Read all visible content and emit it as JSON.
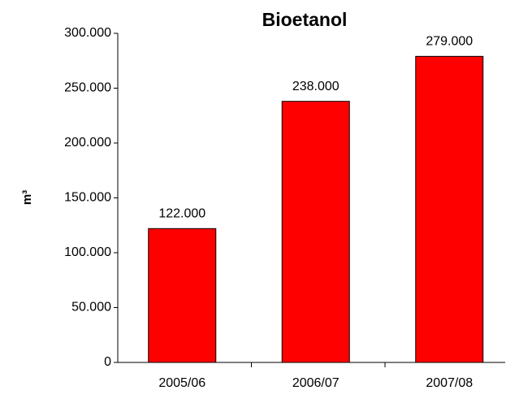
{
  "chart_data": {
    "type": "bar",
    "title": "Bioetanol",
    "y_label": "m³",
    "categories": [
      "2005/06",
      "2006/07",
      "2007/08"
    ],
    "values": [
      122000,
      238000,
      279000
    ],
    "value_labels": [
      "122.000",
      "238.000",
      "279.000"
    ],
    "color": "#ff0000",
    "ylim": [
      0,
      300000
    ],
    "yticks": [
      0,
      {
        "value": 50000,
        "label": "50.000"
      },
      {
        "value": 100000,
        "label": "100.000"
      },
      {
        "value": 150000,
        "label": "150.000"
      },
      {
        "value": 200000,
        "label": "200.000"
      },
      {
        "value": 250000,
        "label": "250.000"
      },
      {
        "value": 300000,
        "label": "300.000"
      }
    ]
  }
}
